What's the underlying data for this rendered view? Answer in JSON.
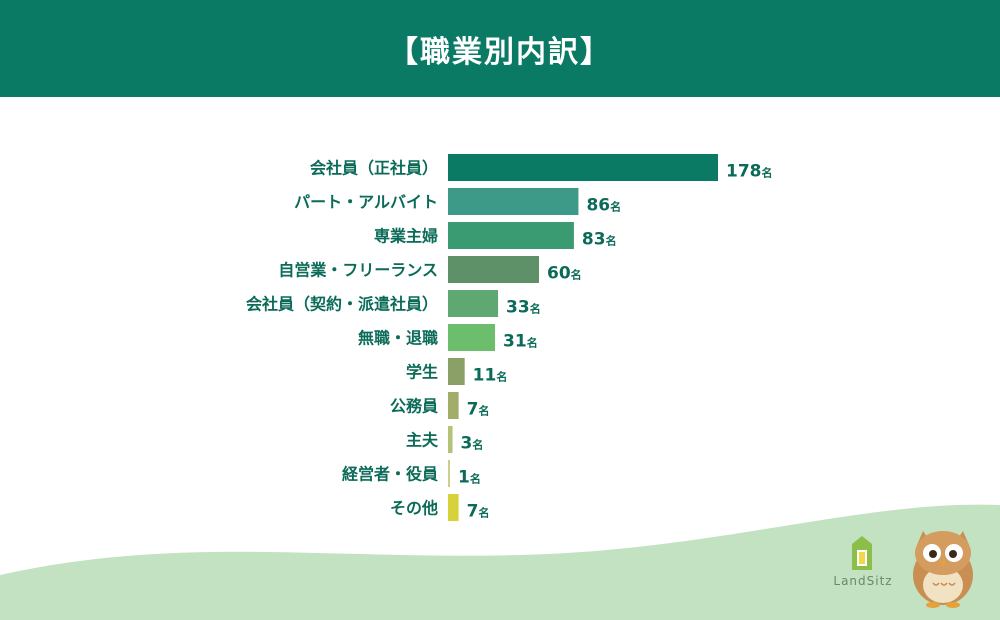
{
  "header": {
    "title": "【職業別内訳】"
  },
  "chart_data": {
    "type": "bar",
    "orientation": "horizontal",
    "title": "【職業別内訳】",
    "unit": "名",
    "categories": [
      "会社員（正社員）",
      "パート・アルバイト",
      "専業主婦",
      "自営業・フリーランス",
      "会社員（契約・派遣社員）",
      "無職・退職",
      "学生",
      "公務員",
      "主夫",
      "経営者・役員",
      "その他"
    ],
    "values": [
      178,
      86,
      83,
      60,
      33,
      31,
      11,
      7,
      3,
      1,
      7
    ],
    "colors": [
      "#0b7a64",
      "#3d9a89",
      "#3a9a72",
      "#5f9169",
      "#5fa872",
      "#6cbd6c",
      "#8aa066",
      "#a3ad6a",
      "#b5c27a",
      "#c9cf8c",
      "#d8d23a"
    ],
    "xlim": [
      0,
      178
    ],
    "grid": false,
    "legend": "none"
  },
  "branding": {
    "logo_text": "LandSitz"
  }
}
